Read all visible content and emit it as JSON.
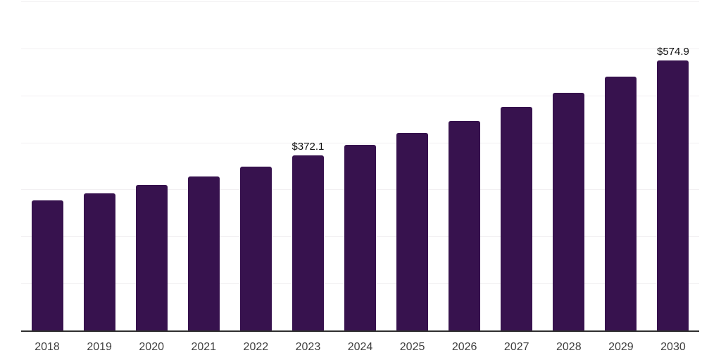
{
  "chart": {
    "background_color": "#ffffff",
    "bar_color": "#37124E",
    "grid_color": "#f2f0f2",
    "axis_color": "#2e2e2e",
    "tick_label_color": "#404040",
    "value_label_color": "#0f0f0f"
  },
  "chart_data": {
    "type": "bar",
    "title": "",
    "xlabel": "",
    "ylabel": "",
    "categories": [
      "2018",
      "2019",
      "2020",
      "2021",
      "2022",
      "2023",
      "2024",
      "2025",
      "2026",
      "2027",
      "2028",
      "2029",
      "2030"
    ],
    "values": [
      276,
      292,
      310,
      328,
      349,
      372.1,
      395,
      420,
      446,
      475,
      506,
      540,
      574.9
    ],
    "value_labels": [
      "",
      "",
      "",
      "",
      "",
      "$372.1",
      "",
      "",
      "",
      "",
      "",
      "",
      "$574.9"
    ],
    "ylim": [
      0,
      700
    ],
    "gridline_step": 100,
    "grid": "horizontal only",
    "legend_position": "none",
    "y_tick_labels_visible": false
  }
}
